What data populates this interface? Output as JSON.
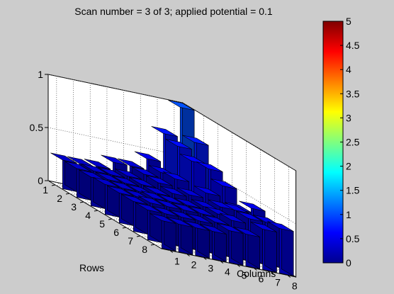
{
  "chart_data": {
    "type": "bar3d",
    "title": "Scan number = 3 of 3; applied potential = 0.1",
    "xlabel": "Columns",
    "ylabel": "Rows",
    "zlabel": "",
    "x_ticks": [
      "1",
      "2",
      "3",
      "4",
      "5",
      "6",
      "7",
      "8"
    ],
    "y_ticks": [
      "1",
      "2",
      "3",
      "4",
      "5",
      "6",
      "7",
      "8"
    ],
    "z_ticks": [
      "0",
      "0.5",
      "1"
    ],
    "zlim": [
      0,
      1
    ],
    "colormap": "jet",
    "colorbar": {
      "limits": [
        0,
        5
      ],
      "ticks": [
        "0",
        "0.5",
        "1",
        "1.5",
        "2",
        "2.5",
        "3",
        "3.5",
        "4",
        "4.5",
        "5"
      ]
    },
    "grid": true,
    "rows": [
      "1",
      "2",
      "3",
      "4",
      "5",
      "6",
      "7",
      "8"
    ],
    "columns": [
      "1",
      "2",
      "3",
      "4",
      "5",
      "6",
      "7",
      "8"
    ],
    "values": [
      [
        0.27,
        0.27,
        0.28,
        0.35,
        0.35,
        0.45,
        0.72,
        1.0
      ],
      [
        0.27,
        0.28,
        0.28,
        0.3,
        0.35,
        0.4,
        0.68,
        0.75
      ],
      [
        0.27,
        0.28,
        0.28,
        0.3,
        0.35,
        0.42,
        0.62,
        0.58
      ],
      [
        0.28,
        0.28,
        0.28,
        0.3,
        0.33,
        0.35,
        0.4,
        0.5
      ],
      [
        0.28,
        0.28,
        0.3,
        0.3,
        0.3,
        0.32,
        0.35,
        0.36
      ],
      [
        0.28,
        0.3,
        0.3,
        0.3,
        0.3,
        0.33,
        0.4,
        0.45
      ],
      [
        0.28,
        0.28,
        0.28,
        0.28,
        0.3,
        0.35,
        0.4,
        0.4
      ],
      [
        0.26,
        0.26,
        0.26,
        0.26,
        0.3,
        0.3,
        0.38,
        0.42
      ]
    ]
  }
}
